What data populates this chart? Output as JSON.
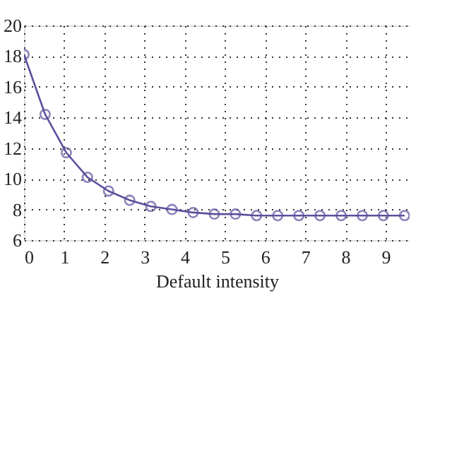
{
  "chart_data": {
    "type": "line",
    "xlabel": "Default intensity",
    "x": [
      0,
      0.526,
      1.053,
      1.579,
      2.105,
      2.632,
      3.158,
      3.684,
      4.211,
      4.737,
      5.263,
      5.789,
      6.316,
      6.842,
      7.368,
      7.895,
      8.421,
      8.947,
      9.474
    ],
    "series": [
      {
        "color": "#5b509c",
        "values": [
          18.1,
          14.2,
          11.7,
          10.1,
          9.2,
          8.6,
          8.2,
          8.0,
          7.8,
          7.7,
          7.7,
          7.6,
          7.6,
          7.6,
          7.6,
          7.6,
          7.6,
          7.6,
          7.6
        ]
      }
    ],
    "xlim": [
      0,
      9.6
    ],
    "xticks": [
      0,
      1,
      2,
      3,
      4,
      5,
      6,
      7,
      8,
      9
    ],
    "ylim": [
      6,
      20
    ],
    "yticks": [
      6,
      8,
      10,
      12,
      14,
      16,
      18,
      20
    ],
    "grid": true,
    "marker": "circle",
    "line_style": "solid"
  }
}
